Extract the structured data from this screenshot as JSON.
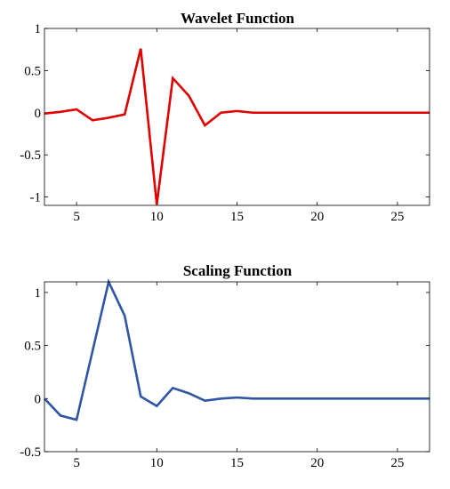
{
  "chart_data": [
    {
      "type": "line",
      "title": "Wavelet Function",
      "xlabel": "",
      "ylabel": "",
      "xlim": [
        3,
        27
      ],
      "ylim": [
        -1.1,
        1
      ],
      "xticks": [
        5,
        10,
        15,
        20,
        25
      ],
      "xtick_labels": [
        "5",
        "10",
        "15",
        "20",
        "25"
      ],
      "yticks": [
        1,
        0.5,
        0,
        -0.5,
        -1
      ],
      "ytick_labels": [
        "1",
        "0.5",
        "0",
        "-0.5",
        "-1"
      ],
      "grid": false,
      "series": [
        {
          "color": "#e00000",
          "x": [
            3,
            4,
            5,
            6,
            7,
            8,
            9,
            10,
            11,
            12,
            13,
            14,
            15,
            16,
            17,
            18,
            19,
            20,
            21,
            22,
            23,
            24,
            25,
            26,
            27
          ],
          "y": [
            -0.01,
            0.01,
            0.04,
            -0.09,
            -0.06,
            -0.02,
            0.76,
            -1.09,
            0.41,
            0.2,
            -0.15,
            0.0,
            0.02,
            0.0,
            0.0,
            0.0,
            0.0,
            0.0,
            0.0,
            0.0,
            0.0,
            0.0,
            0.0,
            0.0,
            0.0
          ]
        }
      ]
    },
    {
      "type": "line",
      "title": "Scaling Function",
      "xlabel": "",
      "ylabel": "",
      "xlim": [
        3,
        27
      ],
      "ylim": [
        -0.5,
        1.1
      ],
      "xticks": [
        5,
        10,
        15,
        20,
        25
      ],
      "xtick_labels": [
        "5",
        "10",
        "15",
        "20",
        "25"
      ],
      "yticks": [
        1,
        0.5,
        0,
        -0.5
      ],
      "ytick_labels": [
        "1",
        "0.5",
        "0",
        "-0.5"
      ],
      "grid": false,
      "series": [
        {
          "color": "#2f55a4",
          "x": [
            3,
            4,
            5,
            6,
            7,
            8,
            9,
            10,
            11,
            12,
            13,
            14,
            15,
            16,
            17,
            18,
            19,
            20,
            21,
            22,
            23,
            24,
            25,
            26,
            27
          ],
          "y": [
            0.0,
            -0.16,
            -0.2,
            0.45,
            1.1,
            0.78,
            0.02,
            -0.07,
            0.1,
            0.05,
            -0.02,
            0.0,
            0.01,
            0.0,
            0.0,
            0.0,
            0.0,
            0.0,
            0.0,
            0.0,
            0.0,
            0.0,
            0.0,
            0.0,
            0.0
          ]
        }
      ]
    }
  ]
}
